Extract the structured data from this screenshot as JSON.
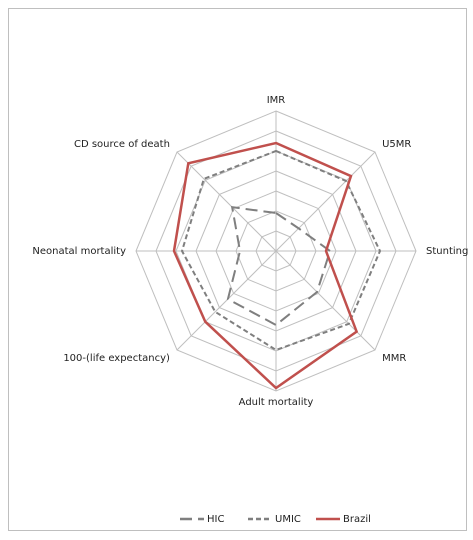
{
  "chart_data": {
    "type": "radar",
    "categories": [
      "IMR",
      "U5MR",
      "Stunting",
      "MMR",
      "Adult mortality",
      "100-(life expectancy)",
      "Neonatal mortality",
      "CD source of death"
    ],
    "series": [
      {
        "name": "HIC",
        "color": "#7f7f7f",
        "values": [
          1.9,
          1.6,
          2.7,
          2.9,
          3.7,
          3.4,
          1.8,
          3.1
        ]
      },
      {
        "name": "UMIC",
        "color": "#7f7f7f",
        "values": [
          5.0,
          4.95,
          5.2,
          5.15,
          4.95,
          4.3,
          4.7,
          5.1
        ]
      },
      {
        "name": "Brazil",
        "color": "#c0504d",
        "values": [
          5.4,
          5.3,
          2.5,
          5.7,
          6.85,
          5.0,
          5.1,
          6.2
        ]
      }
    ],
    "rlim": [
      0,
      7
    ],
    "rticks": [
      1,
      2,
      3,
      4,
      5,
      6,
      7
    ],
    "grid": true,
    "legend": "bottom"
  }
}
